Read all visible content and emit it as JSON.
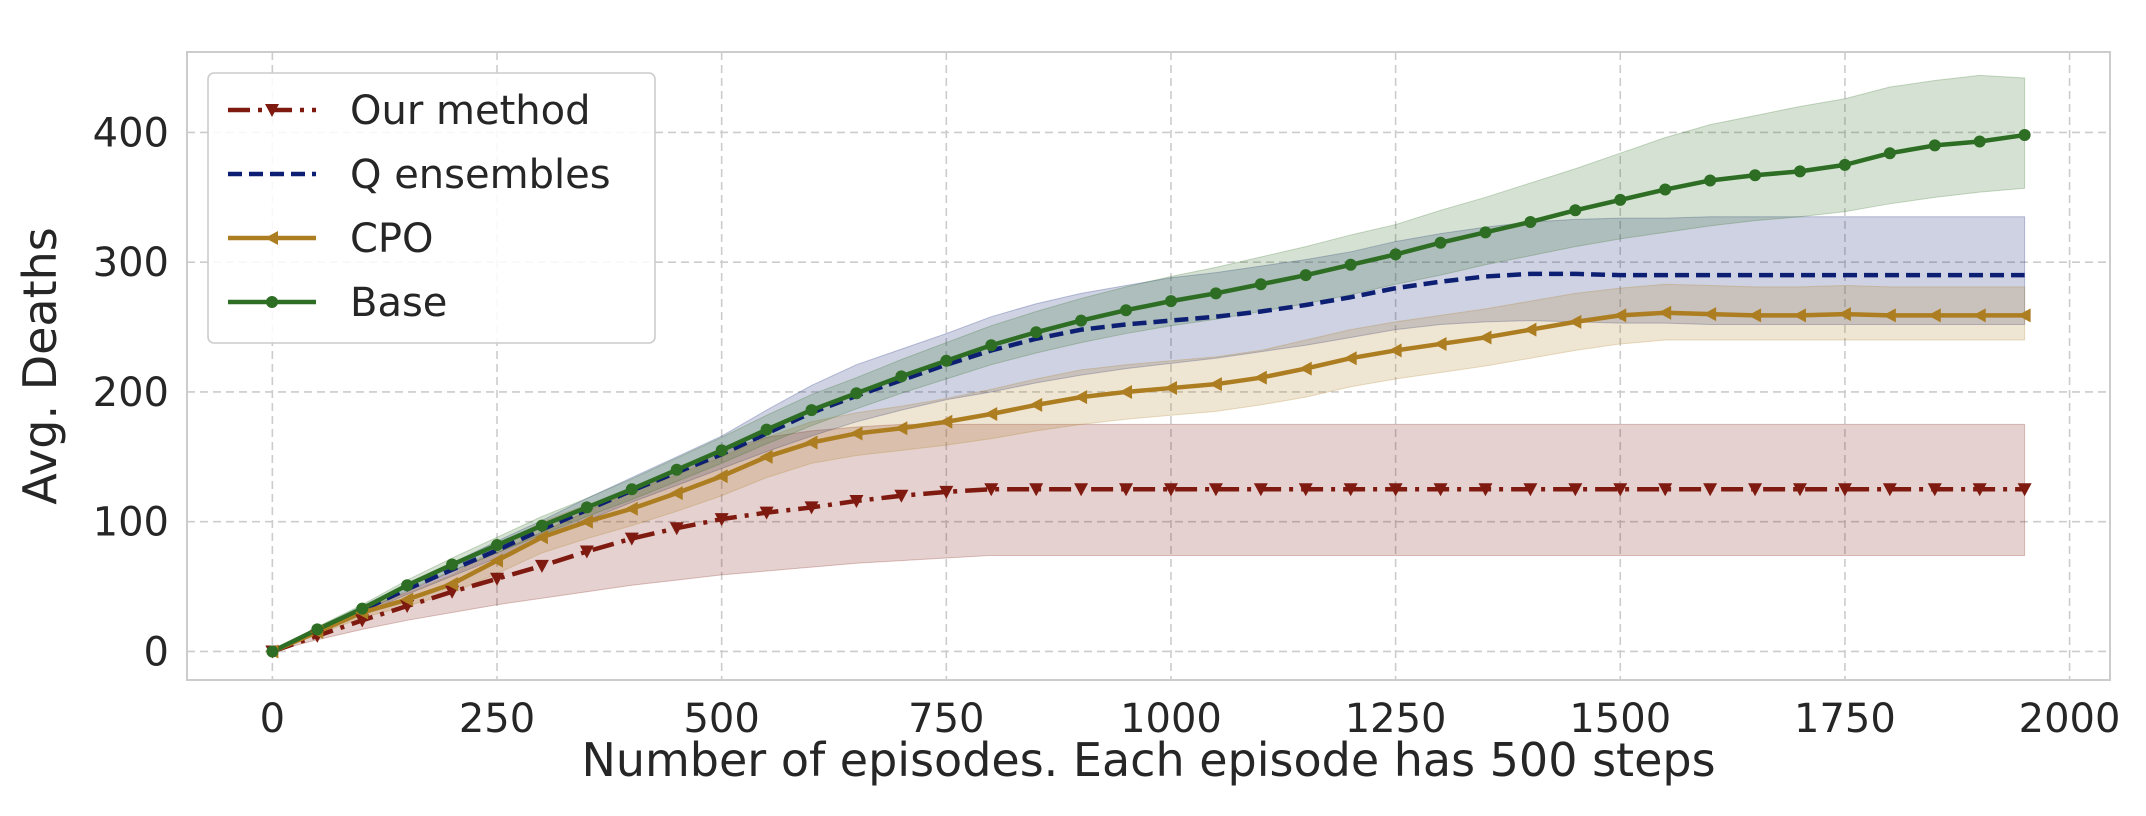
{
  "chart_data": {
    "type": "line",
    "title": "",
    "xlabel": "Number of episodes. Each episode has 500 steps",
    "ylabel": "Avg. Deaths",
    "xlim": [
      -95,
      2045
    ],
    "ylim": [
      -22,
      462
    ],
    "xticks": [
      0,
      250,
      500,
      750,
      1000,
      1250,
      1500,
      1750,
      2000
    ],
    "yticks": [
      0,
      100,
      200,
      300,
      400
    ],
    "grid": true,
    "legend_position": "upper-left",
    "series": [
      {
        "name": "Our method",
        "color": "#7f1a10",
        "line_style": "dashdot",
        "marker": "triangle-down",
        "x": [
          0,
          50,
          100,
          150,
          200,
          250,
          300,
          350,
          400,
          450,
          500,
          550,
          600,
          650,
          700,
          750,
          800,
          850,
          900,
          950,
          1000,
          1050,
          1100,
          1150,
          1200,
          1250,
          1300,
          1350,
          1400,
          1450,
          1500,
          1550,
          1600,
          1650,
          1700,
          1750,
          1800,
          1850,
          1900,
          1950
        ],
        "y": [
          0,
          12,
          24,
          35,
          46,
          56,
          66,
          77,
          87,
          95,
          102,
          107,
          111,
          116,
          120,
          123,
          125,
          125,
          125,
          125,
          125,
          125,
          125,
          125,
          125,
          125,
          125,
          125,
          125,
          125,
          125,
          125,
          125,
          125,
          125,
          125,
          125,
          125,
          125,
          125
        ],
        "band_low": [
          0,
          9,
          17,
          24,
          30,
          36,
          41,
          46,
          51,
          55,
          59,
          62,
          65,
          68,
          70,
          72,
          74,
          74,
          74,
          74,
          74,
          74,
          74,
          74,
          74,
          74,
          74,
          74,
          74,
          74,
          74,
          74,
          74,
          74,
          74,
          74,
          74,
          74,
          74,
          74
        ],
        "band_high": [
          0,
          15,
          31,
          46,
          62,
          76,
          92,
          108,
          124,
          140,
          155,
          165,
          170,
          173,
          175,
          175,
          175,
          175,
          175,
          175,
          175,
          175,
          175,
          175,
          175,
          175,
          175,
          175,
          175,
          175,
          175,
          175,
          175,
          175,
          175,
          175,
          175,
          175,
          175,
          175
        ]
      },
      {
        "name": "Q ensembles",
        "color": "#0d1f73",
        "line_style": "dashed",
        "marker": "none",
        "x": [
          0,
          50,
          100,
          150,
          200,
          250,
          300,
          350,
          400,
          450,
          500,
          550,
          600,
          650,
          700,
          750,
          800,
          850,
          900,
          950,
          1000,
          1050,
          1100,
          1150,
          1200,
          1250,
          1300,
          1350,
          1400,
          1450,
          1500,
          1550,
          1600,
          1650,
          1700,
          1750,
          1800,
          1850,
          1900,
          1950
        ],
        "y": [
          0,
          16,
          32,
          48,
          63,
          78,
          94,
          109,
          124,
          138,
          152,
          168,
          184,
          197,
          209,
          221,
          232,
          241,
          248,
          252,
          255,
          258,
          262,
          267,
          273,
          280,
          285,
          289,
          291,
          291,
          290,
          290,
          290,
          290,
          290,
          290,
          290,
          290,
          290,
          290
        ],
        "band_low": [
          0,
          14,
          29,
          44,
          58,
          72,
          87,
          101,
          115,
          128,
          141,
          154,
          166,
          177,
          186,
          194,
          200,
          207,
          213,
          218,
          222,
          226,
          231,
          236,
          242,
          248,
          252,
          254,
          255,
          254,
          253,
          253,
          252,
          252,
          252,
          252,
          252,
          252,
          252,
          252
        ],
        "band_high": [
          0,
          18,
          35,
          52,
          68,
          85,
          101,
          118,
          134,
          150,
          166,
          186,
          205,
          221,
          233,
          245,
          258,
          268,
          276,
          282,
          288,
          292,
          297,
          302,
          308,
          316,
          322,
          327,
          331,
          333,
          334,
          334,
          335,
          335,
          335,
          335,
          335,
          335,
          335,
          335
        ]
      },
      {
        "name": "CPO",
        "color": "#ad7e21",
        "line_style": "solid",
        "marker": "triangle-left",
        "x": [
          0,
          50,
          100,
          150,
          200,
          250,
          300,
          350,
          400,
          450,
          500,
          550,
          600,
          650,
          700,
          750,
          800,
          850,
          900,
          950,
          1000,
          1050,
          1100,
          1150,
          1200,
          1250,
          1300,
          1350,
          1400,
          1450,
          1500,
          1550,
          1600,
          1650,
          1700,
          1750,
          1800,
          1850,
          1900,
          1950
        ],
        "y": [
          0,
          15,
          30,
          40,
          52,
          70,
          88,
          100,
          110,
          122,
          135,
          150,
          161,
          168,
          172,
          177,
          183,
          190,
          196,
          200,
          203,
          206,
          211,
          218,
          226,
          232,
          237,
          242,
          248,
          254,
          259,
          261,
          260,
          259,
          259,
          260,
          259,
          259,
          259,
          259
        ],
        "band_low": [
          0,
          13,
          26,
          35,
          45,
          60,
          76,
          87,
          97,
          108,
          120,
          134,
          145,
          151,
          155,
          159,
          164,
          170,
          175,
          179,
          182,
          185,
          190,
          196,
          204,
          210,
          215,
          220,
          226,
          232,
          237,
          240,
          240,
          240,
          240,
          240,
          240,
          240,
          240,
          240
        ],
        "band_high": [
          0,
          17,
          34,
          45,
          59,
          80,
          100,
          113,
          123,
          136,
          150,
          165,
          177,
          184,
          189,
          195,
          202,
          210,
          217,
          221,
          224,
          227,
          232,
          240,
          248,
          254,
          259,
          264,
          270,
          276,
          280,
          283,
          282,
          281,
          281,
          282,
          281,
          281,
          281,
          281
        ]
      },
      {
        "name": "Base",
        "color": "#2e6e24",
        "line_style": "solid",
        "marker": "circle",
        "x": [
          0,
          50,
          100,
          150,
          200,
          250,
          300,
          350,
          400,
          450,
          500,
          550,
          600,
          650,
          700,
          750,
          800,
          850,
          900,
          950,
          1000,
          1050,
          1100,
          1150,
          1200,
          1250,
          1300,
          1350,
          1400,
          1450,
          1500,
          1550,
          1600,
          1650,
          1700,
          1750,
          1800,
          1850,
          1900,
          1950
        ],
        "y": [
          0,
          17,
          33,
          51,
          67,
          82,
          97,
          111,
          125,
          140,
          155,
          171,
          186,
          199,
          212,
          224,
          236,
          246,
          255,
          263,
          270,
          276,
          283,
          290,
          298,
          306,
          315,
          323,
          331,
          340,
          348,
          356,
          363,
          367,
          370,
          375,
          384,
          390,
          393,
          398
        ],
        "band_low": [
          0,
          15,
          30,
          47,
          62,
          76,
          90,
          104,
          117,
          131,
          145,
          160,
          174,
          187,
          199,
          210,
          221,
          230,
          238,
          245,
          251,
          256,
          262,
          268,
          275,
          283,
          290,
          298,
          305,
          312,
          318,
          323,
          328,
          332,
          335,
          339,
          345,
          350,
          354,
          357
        ],
        "band_high": [
          0,
          19,
          36,
          55,
          72,
          88,
          104,
          118,
          133,
          149,
          165,
          182,
          198,
          211,
          225,
          238,
          251,
          262,
          272,
          281,
          289,
          296,
          304,
          312,
          321,
          329,
          340,
          350,
          361,
          372,
          384,
          396,
          406,
          413,
          420,
          426,
          435,
          440,
          444,
          442
        ]
      }
    ]
  }
}
